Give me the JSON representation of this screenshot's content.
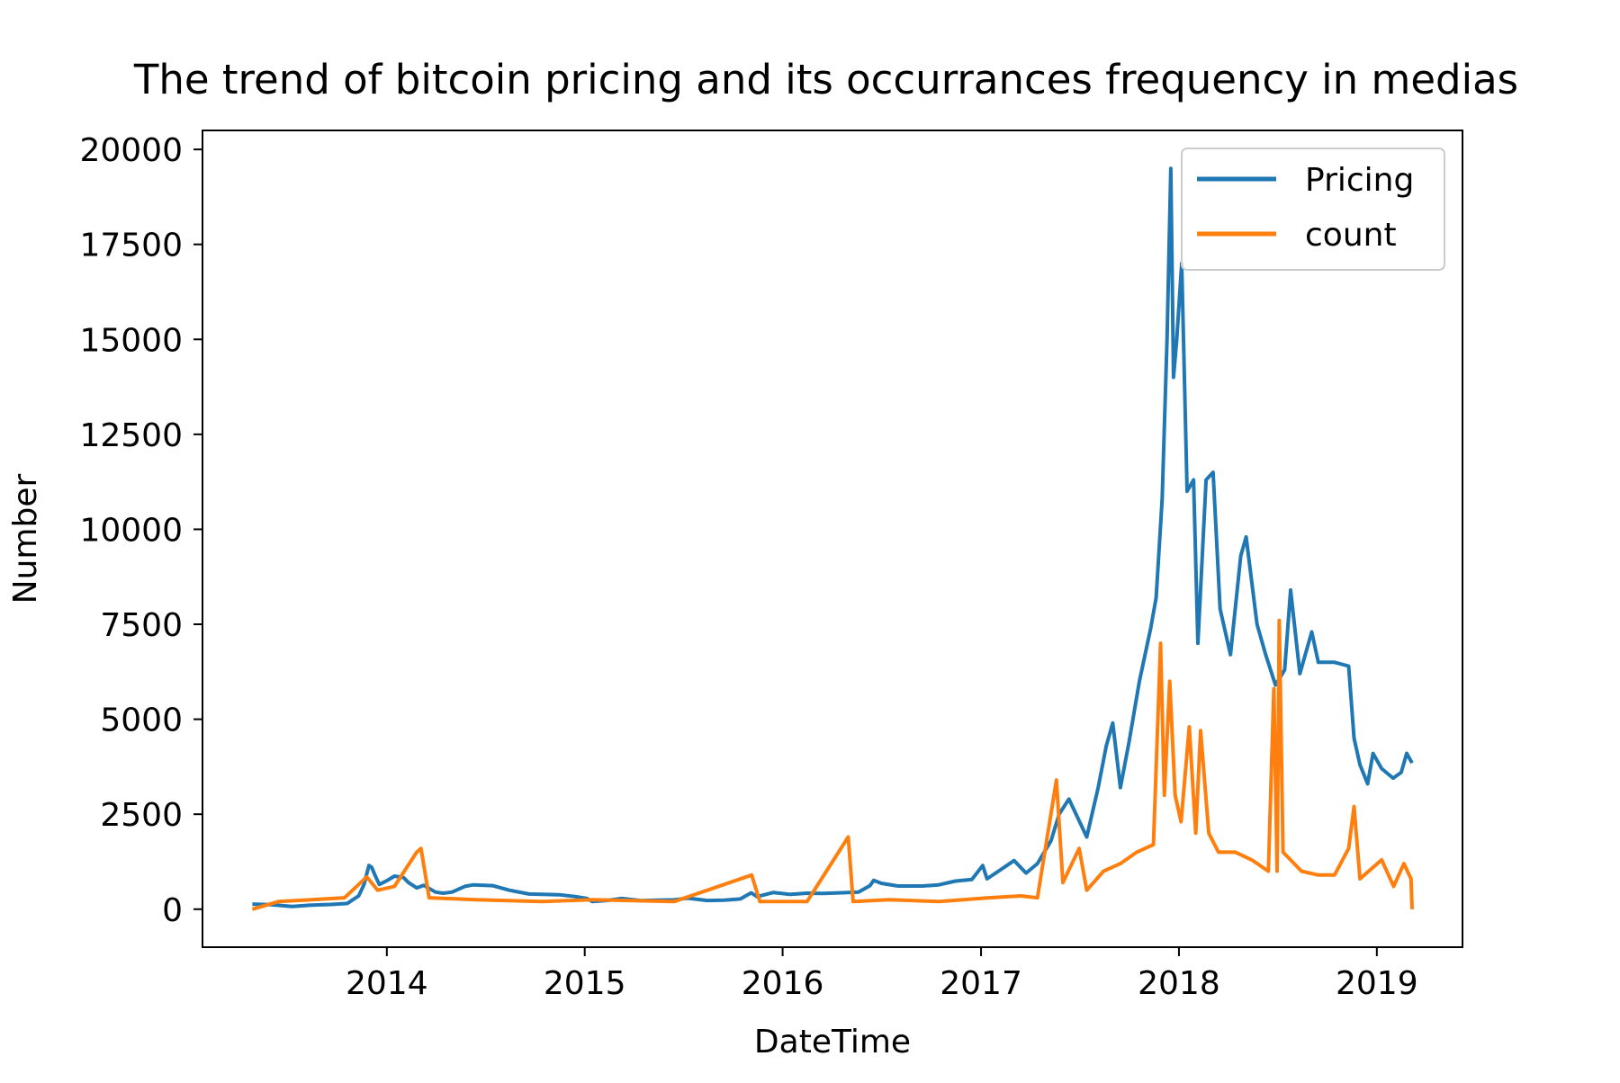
{
  "chart_data": {
    "type": "line",
    "title": "The trend of bitcoin pricing and its occurrances frequency in medias",
    "xlabel": "DateTime",
    "ylabel": "Number",
    "x_range": [
      "2013-04-28",
      "2019-03-07"
    ],
    "xlim": [
      "2013-01-26",
      "2019-06-08"
    ],
    "ylim": [
      -1000,
      20500
    ],
    "x_ticks": [
      "2014",
      "2015",
      "2016",
      "2017",
      "2018",
      "2019"
    ],
    "y_ticks": [
      "0",
      "2500",
      "5000",
      "7500",
      "10000",
      "12500",
      "15000",
      "17500",
      "20000"
    ],
    "grid": false,
    "legend_position": "top-right",
    "series": [
      {
        "name": "Pricing",
        "color": "#1f77b4",
        "points": [
          [
            "2013-04-28",
            135
          ],
          [
            "2013-06-01",
            120
          ],
          [
            "2013-07-10",
            70
          ],
          [
            "2013-08-15",
            105
          ],
          [
            "2013-09-20",
            125
          ],
          [
            "2013-10-20",
            150
          ],
          [
            "2013-11-10",
            350
          ],
          [
            "2013-11-20",
            650
          ],
          [
            "2013-11-29",
            1150
          ],
          [
            "2013-12-04",
            1100
          ],
          [
            "2013-12-10",
            900
          ],
          [
            "2013-12-18",
            650
          ],
          [
            "2014-01-01",
            750
          ],
          [
            "2014-01-15",
            870
          ],
          [
            "2014-02-01",
            830
          ],
          [
            "2014-02-10",
            700
          ],
          [
            "2014-02-25",
            560
          ],
          [
            "2014-03-10",
            630
          ],
          [
            "2014-04-01",
            450
          ],
          [
            "2014-04-15",
            420
          ],
          [
            "2014-05-01",
            450
          ],
          [
            "2014-05-25",
            600
          ],
          [
            "2014-06-10",
            640
          ],
          [
            "2014-07-15",
            620
          ],
          [
            "2014-08-15",
            500
          ],
          [
            "2014-09-20",
            400
          ],
          [
            "2014-10-15",
            390
          ],
          [
            "2014-11-15",
            380
          ],
          [
            "2014-12-15",
            330
          ],
          [
            "2015-01-05",
            280
          ],
          [
            "2015-01-15",
            200
          ],
          [
            "2015-02-10",
            230
          ],
          [
            "2015-03-10",
            280
          ],
          [
            "2015-04-15",
            225
          ],
          [
            "2015-05-15",
            235
          ],
          [
            "2015-06-15",
            245
          ],
          [
            "2015-07-10",
            290
          ],
          [
            "2015-08-15",
            230
          ],
          [
            "2015-09-15",
            235
          ],
          [
            "2015-10-15",
            270
          ],
          [
            "2015-11-04",
            430
          ],
          [
            "2015-11-15",
            330
          ],
          [
            "2015-12-15",
            440
          ],
          [
            "2016-01-15",
            390
          ],
          [
            "2016-02-15",
            420
          ],
          [
            "2016-03-15",
            415
          ],
          [
            "2016-04-15",
            430
          ],
          [
            "2016-05-20",
            450
          ],
          [
            "2016-06-10",
            620
          ],
          [
            "2016-06-17",
            760
          ],
          [
            "2016-07-01",
            680
          ],
          [
            "2016-08-01",
            610
          ],
          [
            "2016-09-15",
            610
          ],
          [
            "2016-10-15",
            640
          ],
          [
            "2016-11-15",
            740
          ],
          [
            "2016-12-15",
            780
          ],
          [
            "2017-01-04",
            1150
          ],
          [
            "2017-01-12",
            800
          ],
          [
            "2017-02-01",
            990
          ],
          [
            "2017-03-03",
            1280
          ],
          [
            "2017-03-25",
            950
          ],
          [
            "2017-04-15",
            1200
          ],
          [
            "2017-05-10",
            1800
          ],
          [
            "2017-05-25",
            2500
          ],
          [
            "2017-06-12",
            2900
          ],
          [
            "2017-07-15",
            1900
          ],
          [
            "2017-08-05",
            3200
          ],
          [
            "2017-08-20",
            4300
          ],
          [
            "2017-09-01",
            4900
          ],
          [
            "2017-09-15",
            3200
          ],
          [
            "2017-10-01",
            4400
          ],
          [
            "2017-10-20",
            6000
          ],
          [
            "2017-11-10",
            7400
          ],
          [
            "2017-11-20",
            8200
          ],
          [
            "2017-12-01",
            10800
          ],
          [
            "2017-12-10",
            15000
          ],
          [
            "2017-12-17",
            19500
          ],
          [
            "2017-12-22",
            14000
          ],
          [
            "2017-12-28",
            15000
          ],
          [
            "2018-01-06",
            17000
          ],
          [
            "2018-01-16",
            11000
          ],
          [
            "2018-01-28",
            11300
          ],
          [
            "2018-02-05",
            7000
          ],
          [
            "2018-02-20",
            11300
          ],
          [
            "2018-03-05",
            11500
          ],
          [
            "2018-03-18",
            7900
          ],
          [
            "2018-04-06",
            6700
          ],
          [
            "2018-04-25",
            9300
          ],
          [
            "2018-05-05",
            9800
          ],
          [
            "2018-05-25",
            7500
          ],
          [
            "2018-06-10",
            6700
          ],
          [
            "2018-06-28",
            5900
          ],
          [
            "2018-07-15",
            6300
          ],
          [
            "2018-07-26",
            8400
          ],
          [
            "2018-08-12",
            6200
          ],
          [
            "2018-09-03",
            7300
          ],
          [
            "2018-09-15",
            6500
          ],
          [
            "2018-10-15",
            6500
          ],
          [
            "2018-11-10",
            6400
          ],
          [
            "2018-11-20",
            4500
          ],
          [
            "2018-12-01",
            3800
          ],
          [
            "2018-12-15",
            3300
          ],
          [
            "2018-12-25",
            4100
          ],
          [
            "2019-01-10",
            3700
          ],
          [
            "2019-01-31",
            3450
          ],
          [
            "2019-02-15",
            3600
          ],
          [
            "2019-02-25",
            4100
          ],
          [
            "2019-03-07",
            3850
          ]
        ]
      },
      {
        "name": "count",
        "color": "#ff7f0e",
        "points": [
          [
            "2013-04-28",
            0
          ],
          [
            "2013-06-15",
            200
          ],
          [
            "2013-08-15",
            250
          ],
          [
            "2013-10-15",
            300
          ],
          [
            "2013-11-25",
            850
          ],
          [
            "2013-12-15",
            500
          ],
          [
            "2014-01-15",
            600
          ],
          [
            "2014-02-25",
            1500
          ],
          [
            "2014-03-05",
            1600
          ],
          [
            "2014-03-20",
            300
          ],
          [
            "2014-06-15",
            250
          ],
          [
            "2014-10-15",
            200
          ],
          [
            "2015-01-15",
            250
          ],
          [
            "2015-06-15",
            200
          ],
          [
            "2015-11-05",
            900
          ],
          [
            "2015-11-20",
            200
          ],
          [
            "2016-02-15",
            200
          ],
          [
            "2016-05-01",
            1900
          ],
          [
            "2016-05-10",
            200
          ],
          [
            "2016-07-15",
            250
          ],
          [
            "2016-10-15",
            200
          ],
          [
            "2017-01-15",
            300
          ],
          [
            "2017-03-15",
            350
          ],
          [
            "2017-04-15",
            300
          ],
          [
            "2017-05-20",
            3400
          ],
          [
            "2017-06-01",
            700
          ],
          [
            "2017-07-01",
            1600
          ],
          [
            "2017-07-15",
            500
          ],
          [
            "2017-08-15",
            1000
          ],
          [
            "2017-09-15",
            1200
          ],
          [
            "2017-10-15",
            1500
          ],
          [
            "2017-11-15",
            1700
          ],
          [
            "2017-11-28",
            7000
          ],
          [
            "2017-12-05",
            3000
          ],
          [
            "2017-12-15",
            6000
          ],
          [
            "2017-12-25",
            3000
          ],
          [
            "2018-01-05",
            2300
          ],
          [
            "2018-01-20",
            4800
          ],
          [
            "2018-02-01",
            2000
          ],
          [
            "2018-02-10",
            4700
          ],
          [
            "2018-02-25",
            2000
          ],
          [
            "2018-03-15",
            1500
          ],
          [
            "2018-04-15",
            1500
          ],
          [
            "2018-05-15",
            1300
          ],
          [
            "2018-06-15",
            1000
          ],
          [
            "2018-06-25",
            5800
          ],
          [
            "2018-07-01",
            1000
          ],
          [
            "2018-07-05",
            7600
          ],
          [
            "2018-07-12",
            1500
          ],
          [
            "2018-08-15",
            1000
          ],
          [
            "2018-09-15",
            900
          ],
          [
            "2018-10-15",
            900
          ],
          [
            "2018-11-10",
            1600
          ],
          [
            "2018-11-20",
            2700
          ],
          [
            "2018-12-01",
            800
          ],
          [
            "2019-01-10",
            1300
          ],
          [
            "2019-02-01",
            600
          ],
          [
            "2019-02-20",
            1200
          ],
          [
            "2019-03-05",
            800
          ],
          [
            "2019-03-07",
            0
          ]
        ]
      }
    ]
  }
}
